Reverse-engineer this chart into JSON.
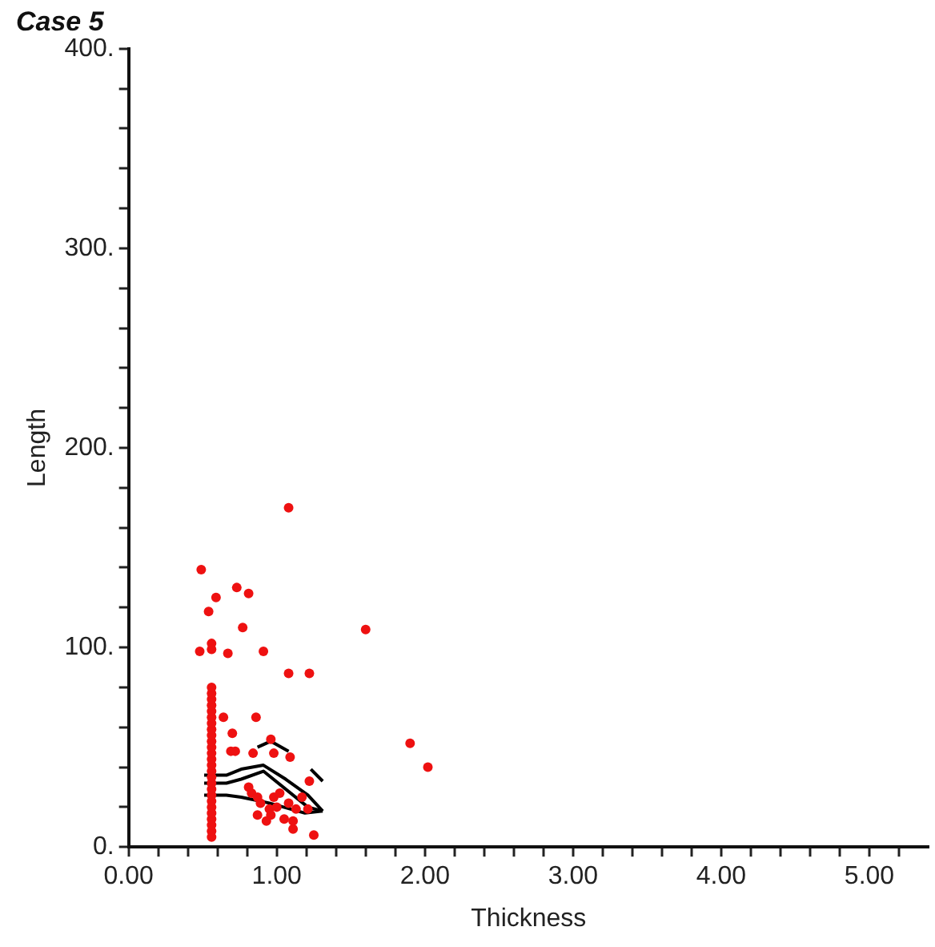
{
  "chart_data": {
    "type": "scatter",
    "title": "Case 5",
    "xlabel": "Thickness",
    "ylabel": "Length",
    "xlim": [
      0,
      5.4
    ],
    "ylim": [
      0,
      400
    ],
    "xticks": [
      {
        "value": 0,
        "label": "0.00"
      },
      {
        "value": 0.2,
        "label": null
      },
      {
        "value": 0.4,
        "label": null
      },
      {
        "value": 0.6,
        "label": null
      },
      {
        "value": 0.8,
        "label": null
      },
      {
        "value": 1,
        "label": "1.00"
      },
      {
        "value": 1.2,
        "label": null
      },
      {
        "value": 1.4,
        "label": null
      },
      {
        "value": 1.6,
        "label": null
      },
      {
        "value": 1.8,
        "label": null
      },
      {
        "value": 2,
        "label": "2.00"
      },
      {
        "value": 2.2,
        "label": null
      },
      {
        "value": 2.4,
        "label": null
      },
      {
        "value": 2.6,
        "label": null
      },
      {
        "value": 2.8,
        "label": null
      },
      {
        "value": 3,
        "label": "3.00"
      },
      {
        "value": 3.2,
        "label": null
      },
      {
        "value": 3.4,
        "label": null
      },
      {
        "value": 3.6,
        "label": null
      },
      {
        "value": 3.8,
        "label": null
      },
      {
        "value": 4,
        "label": "4.00"
      },
      {
        "value": 4.2,
        "label": null
      },
      {
        "value": 4.4,
        "label": null
      },
      {
        "value": 4.6,
        "label": null
      },
      {
        "value": 4.8,
        "label": null
      },
      {
        "value": 5,
        "label": "5.00"
      },
      {
        "value": 5.2,
        "label": null
      }
    ],
    "yticks": [
      {
        "value": 0,
        "label": "0."
      },
      {
        "value": 20,
        "label": null
      },
      {
        "value": 40,
        "label": null
      },
      {
        "value": 60,
        "label": null
      },
      {
        "value": 80,
        "label": null
      },
      {
        "value": 100,
        "label": "100."
      },
      {
        "value": 120,
        "label": null
      },
      {
        "value": 140,
        "label": null
      },
      {
        "value": 160,
        "label": null
      },
      {
        "value": 180,
        "label": null
      },
      {
        "value": 200,
        "label": "200."
      },
      {
        "value": 220,
        "label": null
      },
      {
        "value": 240,
        "label": null
      },
      {
        "value": 260,
        "label": null
      },
      {
        "value": 280,
        "label": null
      },
      {
        "value": 300,
        "label": "300."
      },
      {
        "value": 320,
        "label": null
      },
      {
        "value": 340,
        "label": null
      },
      {
        "value": 360,
        "label": null
      },
      {
        "value": 380,
        "label": null
      },
      {
        "value": 400,
        "label": "400."
      }
    ],
    "grid": false,
    "legend": false,
    "series": [
      {
        "type": "scatter",
        "color": "#ee1111",
        "marker": "circle",
        "x": [
          0.56,
          0.56,
          0.56,
          0.56,
          0.56,
          0.56,
          0.56,
          0.56,
          0.56,
          0.56,
          0.56,
          0.56,
          0.56,
          0.56,
          0.56,
          0.56,
          0.56,
          0.56,
          0.56,
          0.56,
          0.56,
          0.56,
          0.56,
          0.56,
          0.56,
          0.56,
          1.08,
          0.49,
          0.59,
          0.54,
          0.73,
          0.81,
          0.77,
          1.6,
          0.48,
          0.56,
          0.56,
          0.67,
          0.91,
          1.08,
          1.22,
          1.9,
          2.02,
          0.86,
          0.64,
          0.7,
          0.69,
          0.72,
          0.96,
          0.84,
          0.98,
          1.09,
          1.22,
          1.25,
          1.11,
          1.11,
          0.81,
          0.83,
          0.87,
          0.89,
          0.95,
          0.96,
          0.98,
          1.02,
          1.08,
          1.13,
          1.17,
          1.21,
          0.87,
          0.93,
          1.0,
          1.05
        ],
        "values": [
          5,
          8,
          11,
          14,
          17,
          20,
          23,
          26,
          29,
          32,
          35,
          38,
          41,
          44,
          47,
          50,
          53,
          56,
          59,
          62,
          65,
          68,
          71,
          74,
          77,
          80,
          170,
          139,
          125,
          118,
          130,
          127,
          110,
          109,
          98,
          102,
          99,
          97,
          98,
          87,
          87,
          52,
          40,
          65,
          65,
          57,
          48,
          48,
          54,
          47,
          47,
          45,
          33,
          6,
          9,
          13,
          30,
          27,
          25,
          22,
          19,
          16,
          25,
          27,
          22,
          19,
          25,
          19,
          16,
          13,
          20,
          14
        ]
      },
      {
        "type": "line",
        "color": "#000000",
        "marker": "none",
        "x": [
          0.87,
          0.96,
          1.08
        ],
        "values": [
          50,
          53,
          48
        ]
      },
      {
        "type": "line",
        "color": "#000000",
        "marker": "none",
        "x": [
          1.23,
          1.31
        ],
        "values": [
          39,
          33
        ]
      },
      {
        "type": "line",
        "color": "#000000",
        "marker": "none",
        "x": [
          0.51,
          0.66,
          0.76,
          0.91,
          1.06,
          1.21,
          1.31
        ],
        "values": [
          36,
          36,
          39,
          41,
          34,
          26,
          18
        ]
      },
      {
        "type": "line",
        "color": "#000000",
        "marker": "none",
        "x": [
          0.51,
          0.66,
          0.76,
          0.91,
          1.21,
          1.31
        ],
        "values": [
          32,
          32,
          34,
          38,
          20,
          18
        ]
      },
      {
        "type": "line",
        "color": "#000000",
        "marker": "none",
        "x": [
          0.51,
          0.66,
          0.76,
          0.95,
          1.19,
          1.31
        ],
        "values": [
          26,
          26,
          25,
          22,
          17,
          18
        ]
      }
    ]
  }
}
